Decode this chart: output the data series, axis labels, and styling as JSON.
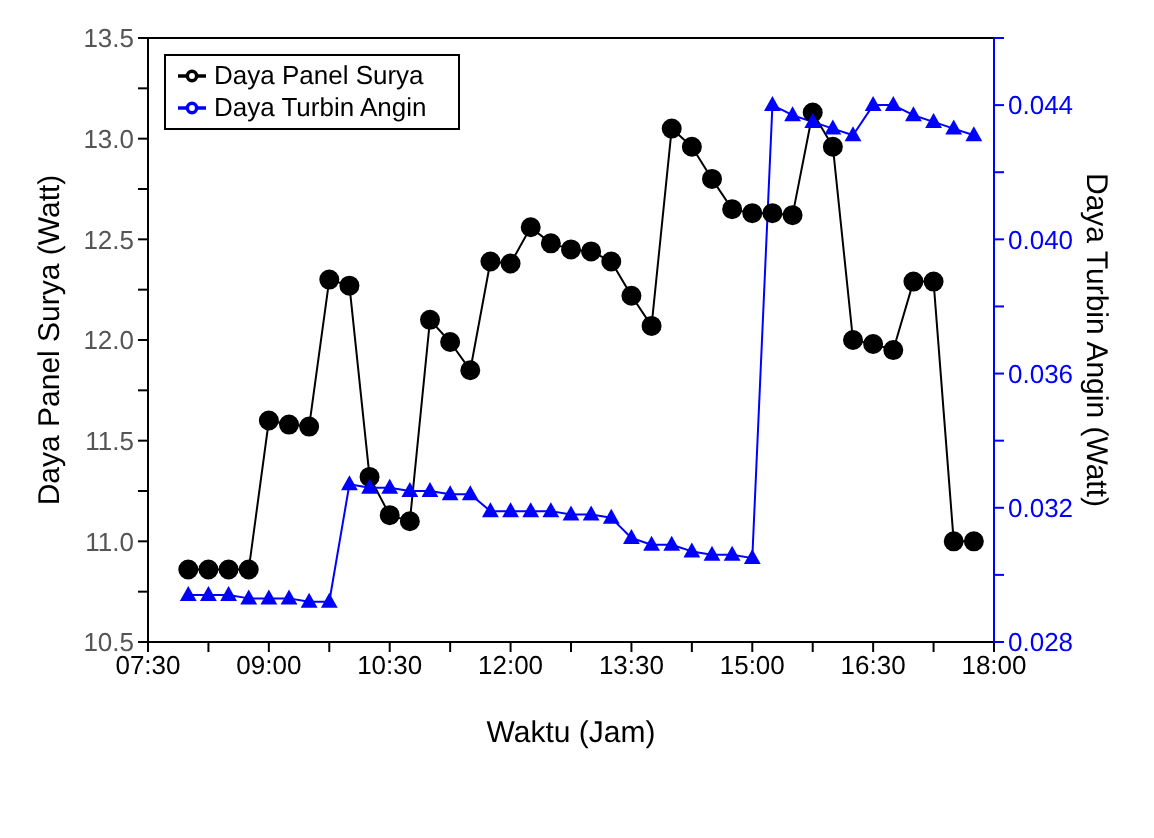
{
  "chart_data": {
    "type": "line",
    "xlabel": "Waktu (Jam)",
    "ylabel": "Daya Panel Surya (Watt)",
    "y2label": "Daya Turbin Angin (Watt)",
    "x": [
      8,
      8.25,
      8.5,
      8.75,
      9,
      9.25,
      9.5,
      9.75,
      10,
      10.25,
      10.5,
      10.75,
      11,
      11.25,
      11.5,
      11.75,
      12,
      12.25,
      12.5,
      12.75,
      13,
      13.25,
      13.5,
      13.75,
      14,
      14.25,
      14.5,
      14.75,
      15,
      15.25,
      15.5,
      15.75,
      16,
      16.25,
      16.5,
      16.75,
      17,
      17.25,
      17.5,
      17.75
    ],
    "series": [
      {
        "name": "Daya Panel Surya",
        "color": "#000000",
        "marker": "circle",
        "values": [
          10.86,
          10.86,
          10.86,
          10.86,
          11.6,
          11.58,
          11.57,
          12.3,
          12.27,
          11.32,
          11.13,
          11.1,
          12.1,
          11.99,
          11.85,
          12.39,
          12.38,
          12.56,
          12.48,
          12.45,
          12.44,
          12.39,
          12.22,
          12.07,
          13.05,
          12.96,
          12.8,
          12.65,
          12.63,
          12.63,
          12.62,
          13.13,
          12.96,
          12.0,
          11.98,
          11.95,
          12.29,
          12.29,
          11.0,
          11.0
        ]
      },
      {
        "name": "Daya Turbin Angin",
        "color": "#0000ff",
        "marker": "triangle",
        "axis": "y2",
        "values": [
          0.0294,
          0.0294,
          0.0294,
          0.0293,
          0.0293,
          0.0293,
          0.0292,
          0.0292,
          0.0327,
          0.0326,
          0.0326,
          0.0325,
          0.0325,
          0.0324,
          0.0324,
          0.0319,
          0.0319,
          0.0319,
          0.0319,
          0.0318,
          0.0318,
          0.0317,
          0.0311,
          0.0309,
          0.0309,
          0.0307,
          0.0306,
          0.0306,
          0.0305,
          0.044,
          0.0437,
          0.0435,
          0.0433,
          0.0431,
          0.044,
          0.044,
          0.0437,
          0.0435,
          0.0433,
          0.0431
        ]
      }
    ],
    "xlim": [
      7.5,
      18
    ],
    "xticks": [
      {
        "value": 7.5,
        "label": "07:30"
      },
      {
        "value": 8.25,
        "label": null
      },
      {
        "value": 9,
        "label": "09:00"
      },
      {
        "value": 9.75,
        "label": null
      },
      {
        "value": 10.5,
        "label": "10:30"
      },
      {
        "value": 11.25,
        "label": null
      },
      {
        "value": 12,
        "label": "12:00"
      },
      {
        "value": 12.75,
        "label": null
      },
      {
        "value": 13.5,
        "label": "13:30"
      },
      {
        "value": 14.25,
        "label": null
      },
      {
        "value": 15,
        "label": "15:00"
      },
      {
        "value": 15.75,
        "label": null
      },
      {
        "value": 16.5,
        "label": "16:30"
      },
      {
        "value": 17.25,
        "label": null
      },
      {
        "value": 18,
        "label": "18:00"
      }
    ],
    "ylim": [
      10.5,
      13.5
    ],
    "yticks": [
      10.5,
      {
        "value": 10.75,
        "label": null
      },
      {
        "value": 11,
        "label": "11.0"
      },
      {
        "value": 11.25,
        "label": null
      },
      11.5,
      {
        "value": 11.75,
        "label": null
      },
      {
        "value": 12,
        "label": "12.0"
      },
      {
        "value": 12.25,
        "label": null
      },
      12.5,
      {
        "value": 12.75,
        "label": null
      },
      {
        "value": 13,
        "label": "13.0"
      },
      {
        "value": 13.25,
        "label": null
      },
      13.5
    ],
    "y2lim": [
      0.028,
      0.046
    ],
    "y2ticks": [
      0.028,
      {
        "value": 0.03,
        "label": null
      },
      0.032,
      {
        "value": 0.034,
        "label": null
      },
      0.036,
      {
        "value": 0.038,
        "label": null
      },
      {
        "value": 0.04,
        "label": "0.040"
      },
      {
        "value": 0.042,
        "label": null
      },
      0.044,
      {
        "value": 0.046,
        "label": null
      }
    ],
    "legend": "top left",
    "grid": false,
    "line_style": "solid"
  }
}
